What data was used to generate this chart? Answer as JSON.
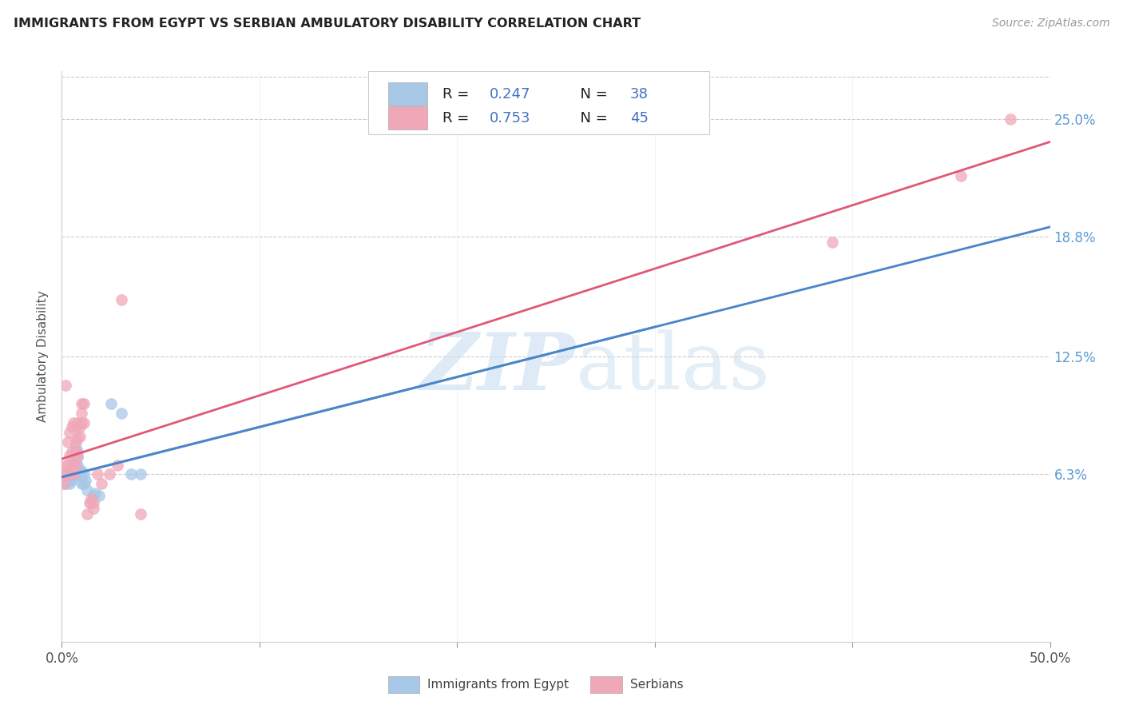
{
  "title": "IMMIGRANTS FROM EGYPT VS SERBIAN AMBULATORY DISABILITY CORRELATION CHART",
  "source": "Source: ZipAtlas.com",
  "ylabel": "Ambulatory Disability",
  "ytick_labels": [
    "6.3%",
    "12.5%",
    "18.8%",
    "25.0%"
  ],
  "ytick_values": [
    0.063,
    0.125,
    0.188,
    0.25
  ],
  "xlim": [
    0.0,
    0.5
  ],
  "ylim": [
    -0.025,
    0.275
  ],
  "legend": {
    "egypt_label": "Immigrants from Egypt",
    "serbia_label": "Serbians",
    "egypt_R": "0.247",
    "egypt_N": "38",
    "serbia_R": "0.753",
    "serbia_N": "45"
  },
  "egypt_color": "#a8c8e8",
  "serbia_color": "#f0a8b8",
  "egypt_line_color": "#4a86c8",
  "serbia_line_color": "#e05878",
  "egypt_points": [
    [
      0.001,
      0.06
    ],
    [
      0.001,
      0.063
    ],
    [
      0.002,
      0.058
    ],
    [
      0.002,
      0.062
    ],
    [
      0.003,
      0.06
    ],
    [
      0.003,
      0.063
    ],
    [
      0.004,
      0.058
    ],
    [
      0.004,
      0.06
    ],
    [
      0.004,
      0.065
    ],
    [
      0.005,
      0.06
    ],
    [
      0.005,
      0.062
    ],
    [
      0.005,
      0.065
    ],
    [
      0.006,
      0.063
    ],
    [
      0.006,
      0.068
    ],
    [
      0.007,
      0.073
    ],
    [
      0.007,
      0.075
    ],
    [
      0.007,
      0.077
    ],
    [
      0.008,
      0.063
    ],
    [
      0.008,
      0.068
    ],
    [
      0.008,
      0.072
    ],
    [
      0.008,
      0.075
    ],
    [
      0.009,
      0.063
    ],
    [
      0.009,
      0.065
    ],
    [
      0.01,
      0.058
    ],
    [
      0.01,
      0.062
    ],
    [
      0.01,
      0.065
    ],
    [
      0.011,
      0.058
    ],
    [
      0.011,
      0.063
    ],
    [
      0.012,
      0.06
    ],
    [
      0.013,
      0.055
    ],
    [
      0.015,
      0.048
    ],
    [
      0.016,
      0.052
    ],
    [
      0.017,
      0.053
    ],
    [
      0.019,
      0.052
    ],
    [
      0.025,
      0.1
    ],
    [
      0.03,
      0.095
    ],
    [
      0.035,
      0.063
    ],
    [
      0.04,
      0.063
    ]
  ],
  "serbia_points": [
    [
      0.001,
      0.058
    ],
    [
      0.001,
      0.062
    ],
    [
      0.002,
      0.063
    ],
    [
      0.002,
      0.068
    ],
    [
      0.002,
      0.11
    ],
    [
      0.003,
      0.063
    ],
    [
      0.003,
      0.068
    ],
    [
      0.003,
      0.08
    ],
    [
      0.004,
      0.065
    ],
    [
      0.004,
      0.073
    ],
    [
      0.004,
      0.085
    ],
    [
      0.005,
      0.063
    ],
    [
      0.005,
      0.075
    ],
    [
      0.005,
      0.088
    ],
    [
      0.006,
      0.063
    ],
    [
      0.006,
      0.07
    ],
    [
      0.006,
      0.09
    ],
    [
      0.007,
      0.068
    ],
    [
      0.007,
      0.075
    ],
    [
      0.007,
      0.08
    ],
    [
      0.007,
      0.088
    ],
    [
      0.008,
      0.073
    ],
    [
      0.008,
      0.082
    ],
    [
      0.008,
      0.09
    ],
    [
      0.009,
      0.083
    ],
    [
      0.009,
      0.088
    ],
    [
      0.01,
      0.09
    ],
    [
      0.01,
      0.095
    ],
    [
      0.01,
      0.1
    ],
    [
      0.011,
      0.09
    ],
    [
      0.011,
      0.1
    ],
    [
      0.013,
      0.042
    ],
    [
      0.014,
      0.048
    ],
    [
      0.015,
      0.05
    ],
    [
      0.016,
      0.045
    ],
    [
      0.016,
      0.048
    ],
    [
      0.018,
      0.063
    ],
    [
      0.02,
      0.058
    ],
    [
      0.024,
      0.063
    ],
    [
      0.028,
      0.068
    ],
    [
      0.03,
      0.155
    ],
    [
      0.04,
      0.042
    ],
    [
      0.39,
      0.185
    ],
    [
      0.455,
      0.22
    ],
    [
      0.48,
      0.25
    ]
  ]
}
